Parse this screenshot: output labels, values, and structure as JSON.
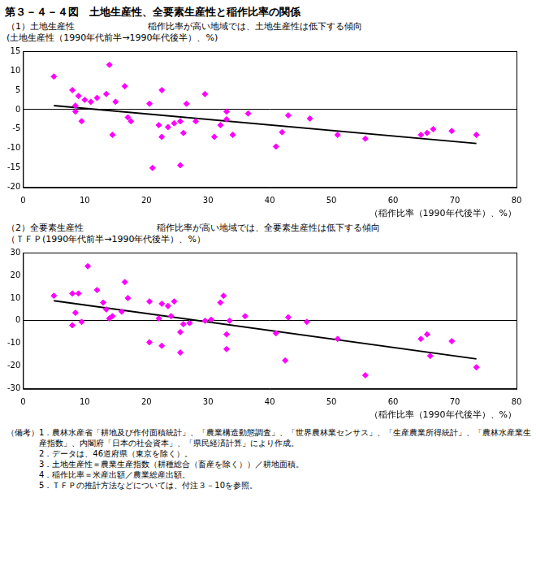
{
  "title": "第３－４－４図　土地生産性、全要素生産性と稲作比率の関係",
  "chart_data": [
    {
      "type": "scatter",
      "title": "（1）土地生産性",
      "subtitle": "稲作比率が高い地域では、土地生産性は低下する傾向",
      "y_label": "(土地生産性（1990年代前半→1990年代後半）、%)",
      "x_label": "（稲作比率（1990年代後半）、%）",
      "xlim": [
        0,
        80
      ],
      "xticks": [
        0,
        10,
        20,
        30,
        40,
        50,
        60,
        70,
        80
      ],
      "ylim": [
        -20,
        15
      ],
      "yticks": [
        -20,
        -15,
        -10,
        -5,
        0,
        5,
        10,
        15
      ],
      "grid": false,
      "series": [
        {
          "type": "scatter",
          "color": "#ff00ff",
          "marker": "diamond",
          "x": [
            5,
            8,
            8.5,
            8.5,
            9,
            9.5,
            10,
            11,
            12,
            13.5,
            14,
            14.5,
            15,
            16.5,
            17,
            17.5,
            20.5,
            21,
            22,
            22.5,
            22.5,
            23.5,
            24.5,
            25.5,
            25.5,
            26,
            26.5,
            28,
            29.5,
            31,
            32,
            33,
            33,
            34,
            36.5,
            41,
            42,
            43,
            46.5,
            51,
            55.5,
            64.5,
            65.5,
            66.5,
            69.5,
            73.5
          ],
          "values": [
            8.5,
            5,
            -0.5,
            1,
            3.5,
            -3,
            2.5,
            2,
            3,
            4,
            11.5,
            -6.5,
            2,
            6,
            -2,
            -3,
            1.5,
            -15,
            -4,
            5,
            -7,
            -4.5,
            -3.5,
            -3,
            -14.3,
            -6,
            1.5,
            -3,
            4,
            -7,
            -4,
            -2.5,
            -0.5,
            -6.5,
            -1,
            -9.5,
            -5.8,
            -1.5,
            -2.3,
            -6.5,
            -7.5,
            -6.5,
            -6,
            -5,
            -5.5,
            -6.5
          ]
        },
        {
          "type": "line",
          "color": "#000000",
          "line_style": "solid",
          "x": [
            5,
            73.5
          ],
          "values": [
            1,
            -8.7
          ]
        }
      ]
    },
    {
      "type": "scatter",
      "title": "（2）全要素生産性",
      "subtitle": "稲作比率が高い地域では、全要素生産性は低下する傾向",
      "y_label": "（ＴＦＰ(1990年代前半→1990年代後半）、%）",
      "x_label": "（稲作比率（1990年代後半）、%）",
      "xlim": [
        0,
        80
      ],
      "xticks": [
        0,
        10,
        20,
        30,
        40,
        50,
        60,
        70,
        80
      ],
      "ylim": [
        -30,
        30
      ],
      "yticks": [
        -30,
        -20,
        -10,
        0,
        10,
        20,
        30
      ],
      "grid": false,
      "series": [
        {
          "type": "scatter",
          "color": "#ff00ff",
          "marker": "diamond",
          "x": [
            5,
            8,
            8,
            8.5,
            9,
            9.5,
            10.5,
            12,
            13,
            13.5,
            14,
            14.5,
            16,
            16.5,
            17,
            20.5,
            20.5,
            22,
            22.5,
            22.5,
            23.5,
            24,
            24.5,
            25.5,
            25.5,
            26,
            27,
            29.5,
            30.5,
            32,
            32.5,
            33,
            33,
            33.5,
            36,
            41,
            42.5,
            43,
            46,
            51,
            55.5,
            64.5,
            65.5,
            66,
            69.5,
            73.5
          ],
          "values": [
            11,
            12,
            -2,
            3.5,
            12,
            -0.5,
            24,
            13.5,
            8,
            5,
            1,
            2,
            4,
            17,
            10,
            8.5,
            -9.5,
            1,
            -11,
            7.5,
            6.5,
            2,
            8.5,
            -5,
            -14,
            -1.5,
            -1,
            0,
            0.5,
            8,
            11,
            -6,
            -12.5,
            0,
            2,
            -5.5,
            -17.5,
            1.5,
            -0.5,
            -8,
            -24,
            -8,
            -6,
            -15.5,
            -9,
            -20.5
          ]
        },
        {
          "type": "line",
          "color": "#000000",
          "line_style": "solid",
          "x": [
            5,
            73.5
          ],
          "values": [
            8.8,
            -16.8
          ]
        }
      ]
    }
  ],
  "notes_label": "（備考）",
  "notes": [
    "1．農林水産省「耕地及び作付面積統計」、「農業構造動態調査」、「世界農林業センサス」、「生産農業所得統計」、「農林水産業生産指数」、内閣府「日本の社会資本」、「県民経済計算」により作成。",
    "2．データは、46道府県（東京を除く）。",
    "3．土地生産性＝農業生産指数（耕種総合（畜産を除く））／耕地面積。",
    "4．稲作比率＝米産出額／農業総産出額。",
    "5．ＴＦＰの推計方法などについては、付注３－10を参照。"
  ]
}
